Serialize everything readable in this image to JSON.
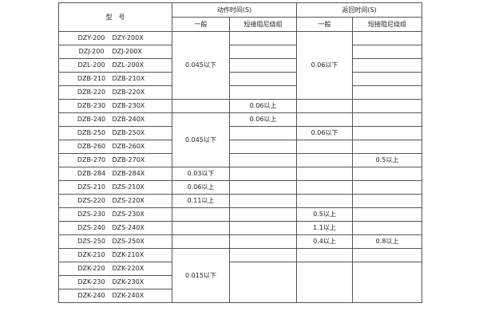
{
  "header": {
    "model": "型　号",
    "action_time": "动作时间(S)",
    "return_time": "返回时间(S)",
    "general": "一般",
    "short_damping": "短接阻尼绕组"
  },
  "models": [
    [
      "DZY-200",
      "DZY-200X"
    ],
    [
      "DZJ-200",
      "DZJ-200X"
    ],
    [
      "DZL-200",
      "DZL-200X"
    ],
    [
      "DZB-210",
      "DZB-210X"
    ],
    [
      "DZB-220",
      "DZB-220X"
    ],
    [
      "DZB-230",
      "DZB-230X"
    ],
    [
      "DZB-240",
      "DZB-240X"
    ],
    [
      "DZB-250",
      "DZB-250X"
    ],
    [
      "DZB-260",
      "DZB-260X"
    ],
    [
      "DZB-270",
      "DZB-270X"
    ],
    [
      "DZB-284",
      "DZB-284X"
    ],
    [
      "DZS-210",
      "DZS-210X"
    ],
    [
      "DZS-220",
      "DZS-220X"
    ],
    [
      "DZS-230",
      "DZS-230X"
    ],
    [
      "DZS-240",
      "DZS-240X"
    ],
    [
      "DZS-250",
      "DZS-250X"
    ],
    [
      "DZK-210",
      "DZK-210X"
    ],
    [
      "DZK-220",
      "DZK-220X"
    ],
    [
      "DZK-230",
      "DZK-230X"
    ],
    [
      "DZK-240",
      "DZK-240X"
    ]
  ],
  "columns": {
    "action_general": [
      {
        "text": "0.045以下",
        "span": 5
      },
      {
        "text": "",
        "span": 1
      },
      {
        "text": "0.045以下",
        "span": 4
      },
      {
        "text": "0.03以下",
        "span": 1
      },
      {
        "text": "0.06以上",
        "span": 1
      },
      {
        "text": "0.11以上",
        "span": 1
      },
      {
        "text": "",
        "span": 1
      },
      {
        "text": "",
        "span": 1
      },
      {
        "text": "",
        "span": 1
      },
      {
        "text": "0.015以下",
        "span": 4
      }
    ],
    "action_short": [
      {
        "text": "",
        "span": 1
      },
      {
        "text": "",
        "span": 1
      },
      {
        "text": "",
        "span": 1
      },
      {
        "text": "",
        "span": 1
      },
      {
        "text": "",
        "span": 1
      },
      {
        "text": "0.06以上",
        "span": 1
      },
      {
        "text": "0.06以上",
        "span": 1
      },
      {
        "text": "",
        "span": 1
      },
      {
        "text": "",
        "span": 1
      },
      {
        "text": "",
        "span": 1
      },
      {
        "text": "",
        "span": 1
      },
      {
        "text": "",
        "span": 1
      },
      {
        "text": "",
        "span": 1
      },
      {
        "text": "",
        "span": 1
      },
      {
        "text": "",
        "span": 1
      },
      {
        "text": "",
        "span": 1
      },
      {
        "text": "",
        "span": 1
      },
      {
        "text": "",
        "span": 3
      }
    ],
    "return_general": [
      {
        "text": "0.06以下",
        "span": 5
      },
      {
        "text": "",
        "span": 1
      },
      {
        "text": "",
        "span": 1
      },
      {
        "text": "0.06以下",
        "span": 1
      },
      {
        "text": "",
        "span": 1
      },
      {
        "text": "",
        "span": 1
      },
      {
        "text": "",
        "span": 1
      },
      {
        "text": "",
        "span": 1
      },
      {
        "text": "",
        "span": 1
      },
      {
        "text": "0.5以上",
        "span": 1
      },
      {
        "text": "1.1以上",
        "span": 1
      },
      {
        "text": "0.4以上",
        "span": 1
      },
      {
        "text": "",
        "span": 1
      },
      {
        "text": "",
        "span": 3
      }
    ],
    "return_short": [
      {
        "text": "",
        "span": 1
      },
      {
        "text": "",
        "span": 1
      },
      {
        "text": "",
        "span": 1
      },
      {
        "text": "",
        "span": 1
      },
      {
        "text": "",
        "span": 1
      },
      {
        "text": "",
        "span": 1
      },
      {
        "text": "",
        "span": 1
      },
      {
        "text": "",
        "span": 1
      },
      {
        "text": "",
        "span": 1
      },
      {
        "text": "0.5以上",
        "span": 1
      },
      {
        "text": "",
        "span": 1
      },
      {
        "text": "",
        "span": 1
      },
      {
        "text": "",
        "span": 1
      },
      {
        "text": "",
        "span": 1
      },
      {
        "text": "",
        "span": 1
      },
      {
        "text": "0.8以上",
        "span": 1
      },
      {
        "text": "",
        "span": 1
      },
      {
        "text": "",
        "span": 3
      }
    ]
  }
}
